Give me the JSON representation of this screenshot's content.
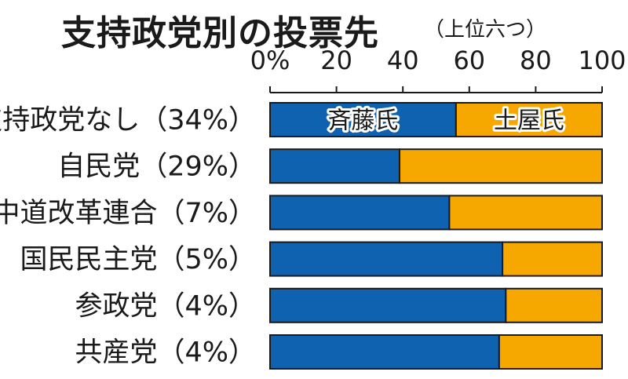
{
  "chart_data": {
    "type": "bar",
    "orientation": "horizontal",
    "stacked": true,
    "title": "支持政党別の投票先",
    "subtitle": "（上位六つ）",
    "xlim": [
      0,
      100
    ],
    "x_ticks": [
      "0%",
      "20",
      "40",
      "60",
      "80",
      "100"
    ],
    "x_tick_values": [
      0,
      20,
      40,
      60,
      80,
      100
    ],
    "grid": false,
    "categories": [
      {
        "name": "支持政党なし",
        "pct": "（34%）"
      },
      {
        "name": "自民党",
        "pct": "（29%）"
      },
      {
        "name": "中道改革連合",
        "pct": "（7%）"
      },
      {
        "name": "国民民主党",
        "pct": "（5%）"
      },
      {
        "name": "参政党",
        "pct": "（4%）"
      },
      {
        "name": "共産党",
        "pct": "（4%）"
      }
    ],
    "series": [
      {
        "name": "斉藤氏",
        "color": "#0e62b0",
        "values": [
          56,
          39,
          54,
          70,
          71,
          69
        ]
      },
      {
        "name": "土屋氏",
        "color": "#f6a800",
        "values": [
          44,
          61,
          46,
          30,
          29,
          31
        ]
      }
    ]
  }
}
